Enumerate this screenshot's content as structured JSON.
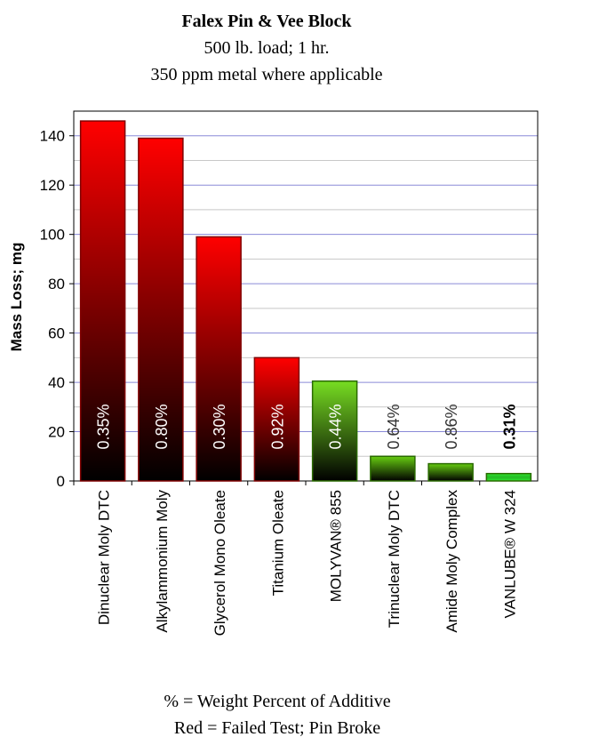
{
  "chart_data": {
    "type": "bar",
    "title": "Falex Pin & Vee Block",
    "subtitle": [
      "500 lb. load; 1 hr.",
      "350 ppm metal where applicable"
    ],
    "y_label": "Mass Loss; mg",
    "categories": [
      "Dinuclear Moly DTC",
      "Alkylammonium Moly",
      "Glycerol Mono Oleate",
      "Titanium Oleate",
      "MOLYVAN® 855",
      "Trinuclear Moly DTC",
      "Amide Moly Complex",
      "VANLUBE® W 324"
    ],
    "values": [
      146,
      139,
      99,
      50,
      40.5,
      10,
      7,
      3
    ],
    "bar_labels": [
      "0.35%",
      "0.80%",
      "0.30%",
      "0.92%",
      "0.44%",
      "0.64%",
      "0.86%",
      "0.31%"
    ],
    "bar_label_colors": [
      "#ffffff",
      "#ffffff",
      "#ffffff",
      "#ffffff",
      "#ffffff",
      "#333333",
      "#333333",
      "#000000"
    ],
    "bar_label_bold": [
      false,
      false,
      false,
      false,
      false,
      false,
      false,
      true
    ],
    "colors": [
      "#ff0000",
      "#ff0000",
      "#ff0000",
      "#ff0000",
      "#77dd22",
      "#66cc11",
      "#66cc11",
      "#33ff33"
    ],
    "ylim": [
      0,
      150
    ],
    "yticks": [
      0,
      20,
      40,
      60,
      80,
      100,
      120,
      140
    ],
    "y_minor_ticks": [
      10,
      30,
      50,
      70,
      90,
      110,
      130
    ],
    "grid": true,
    "notes": [
      "% = Weight Percent of Additive",
      "Red = Failed Test; Pin Broke"
    ]
  }
}
